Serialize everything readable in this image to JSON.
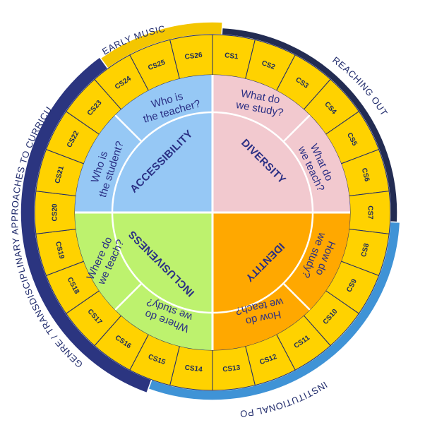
{
  "rings": {
    "bands": [
      {
        "label": "EARLY MUSIC",
        "color": "#f4c600"
      },
      {
        "label": "REACHING OUT",
        "color": "#232c52"
      },
      {
        "label": "INSTITUTIONAL POLICIES",
        "color": "#3f93d6"
      },
      {
        "label": "GENRE / TRANSDISCIPLINARY APPROACHES TO CURRICULA",
        "color": "#2b3580"
      }
    ],
    "segment_color": "#ffd200",
    "segments": [
      "CS1",
      "CS2",
      "CS3",
      "CS4",
      "CS5",
      "CS6",
      "CS7",
      "CS8",
      "CS9",
      "CS10",
      "CS11",
      "CS12",
      "CS13",
      "CS14",
      "CS15",
      "CS16",
      "CS17",
      "CS18",
      "CS19",
      "CS20",
      "CS21",
      "CS22",
      "CS23",
      "CS24",
      "CS25",
      "CS26"
    ]
  },
  "quadrants": [
    {
      "title": "DIVERSITY",
      "color": "#f2c9cf",
      "outer_question": "What do we teach?",
      "inner_question": "What do we study?"
    },
    {
      "title": "IDENTITY",
      "color": "#ffa800",
      "outer_question": "How do we study?",
      "inner_question": "How do we teach?"
    },
    {
      "title": "INCLUSIVENESS",
      "color": "#bdf26e",
      "outer_question": "Where do we study?",
      "inner_question": "Where do we teach?"
    },
    {
      "title": "ACCESSIBILITY",
      "color": "#96c8f5",
      "outer_question": "Who is the student?",
      "inner_question": "Who is the teacher?"
    }
  ],
  "texts": {
    "early_music": "EARLY MUSIC",
    "reaching_out": "REACHING OUT",
    "institutional": "INSTITUTIONAL POLICIES",
    "genre": "GENRE / TRANSDISCIPLINARY APPROACHES TO CURRICULA",
    "diversity": "DIVERSITY",
    "identity": "IDENTITY",
    "inclusiveness": "INCLUSIVENESS",
    "accessibility": "ACCESSIBILITY",
    "q_what_study_1": "What do",
    "q_what_study_2": "we study?",
    "q_what_teach_1": "What do",
    "q_what_teach_2": "we teach?",
    "q_how_study_1": "How do",
    "q_how_study_2": "we study?",
    "q_how_teach_1": "How do",
    "q_how_teach_2": "we teach?",
    "q_where_study_1": "Where do",
    "q_where_study_2": "we study?",
    "q_where_teach_1": "Where do",
    "q_where_teach_2": "we teach?",
    "q_who_student_1": "Who is",
    "q_who_student_2": "the student?",
    "q_who_teacher_1": "Who is",
    "q_who_teacher_2": "the teacher?"
  }
}
